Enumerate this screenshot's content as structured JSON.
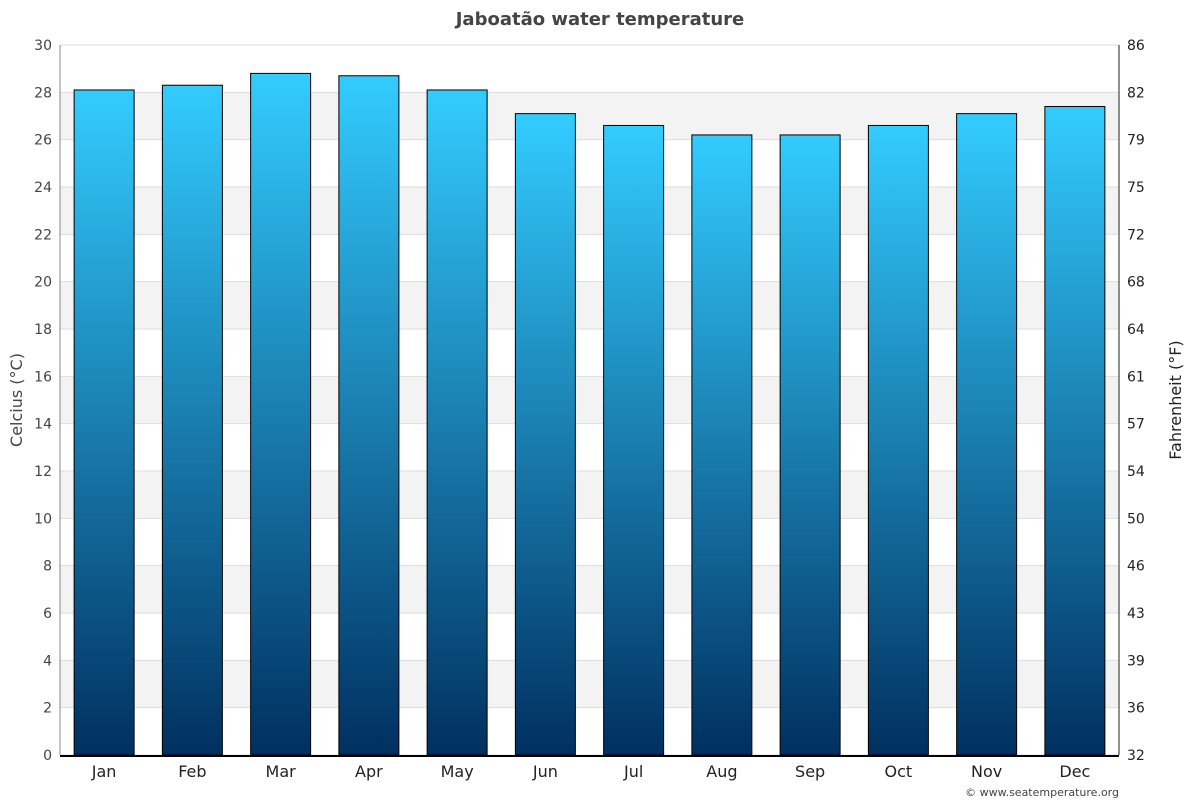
{
  "chart_data": {
    "type": "bar",
    "title": "Jaboatão water temperature",
    "ylabel": "Celcius (°C)",
    "ylabel_right": "Fahrenheit (°F)",
    "categories": [
      "Jan",
      "Feb",
      "Mar",
      "Apr",
      "May",
      "Jun",
      "Jul",
      "Aug",
      "Sep",
      "Oct",
      "Nov",
      "Dec"
    ],
    "values": [
      28.1,
      28.3,
      28.8,
      28.7,
      28.1,
      27.1,
      26.6,
      26.2,
      26.2,
      26.6,
      27.1,
      27.4
    ],
    "ylim": [
      0,
      30
    ],
    "yticks": [
      0,
      2,
      4,
      6,
      8,
      10,
      12,
      14,
      16,
      18,
      20,
      22,
      24,
      26,
      28,
      30
    ],
    "yticks_right": [
      "32",
      "36",
      "39",
      "43",
      "46",
      "50",
      "54",
      "57",
      "61",
      "64",
      "68",
      "72",
      "75",
      "79",
      "82",
      "86"
    ],
    "grid": true,
    "colors": {
      "bar_top": "#33ccff",
      "bar_bottom": "#003060",
      "band": "#f3f3f3"
    }
  },
  "footer": {
    "credit": "© www.seatemperature.org"
  }
}
